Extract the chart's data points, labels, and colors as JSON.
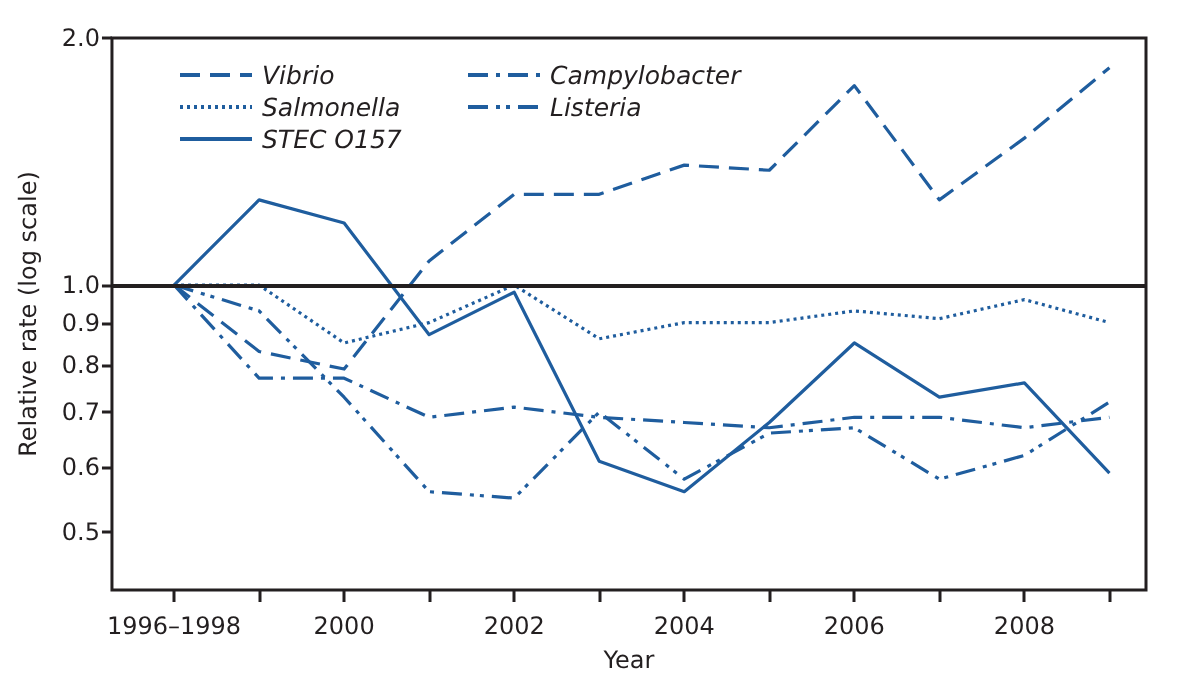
{
  "chart_data": {
    "type": "line",
    "xlabel": "Year",
    "ylabel": "Relative rate (log scale)",
    "categories": [
      "1996–1998",
      null,
      "2000",
      null,
      "2002",
      null,
      "2004",
      null,
      "2006",
      null,
      "2008",
      null
    ],
    "series": [
      {
        "name": "Vibrio",
        "color": "#1f5d9e",
        "line_style": "dashed",
        "values": [
          1.0,
          0.83,
          0.79,
          1.07,
          1.29,
          1.29,
          1.4,
          1.38,
          1.75,
          1.27,
          1.51,
          1.84
        ]
      },
      {
        "name": "Salmonella",
        "color": "#1f5d9e",
        "line_style": "dotted",
        "values": [
          1.0,
          1.0,
          0.85,
          0.9,
          1.0,
          0.86,
          0.9,
          0.9,
          0.93,
          0.91,
          0.96,
          0.9
        ]
      },
      {
        "name": "STEC O157",
        "color": "#1f5d9e",
        "line_style": "solid",
        "values": [
          1.0,
          1.27,
          1.19,
          0.87,
          0.98,
          0.61,
          0.56,
          0.68,
          0.85,
          0.73,
          0.76,
          0.59
        ]
      },
      {
        "name": "Campylobacter",
        "color": "#1f5d9e",
        "line_style": "dashdot",
        "values": [
          1.0,
          0.77,
          0.77,
          0.69,
          0.71,
          0.69,
          0.68,
          0.67,
          0.69,
          0.69,
          0.67,
          0.69
        ]
      },
      {
        "name": "Listeria",
        "color": "#1f5d9e",
        "line_style": "dashdotdot",
        "values": [
          1.0,
          0.93,
          0.73,
          0.56,
          0.55,
          0.7,
          0.58,
          0.66,
          0.67,
          0.58,
          0.62,
          0.72
        ]
      }
    ],
    "ylim": [
      0.425,
      2.0
    ],
    "yticks": [
      0.5,
      0.6,
      0.7,
      0.8,
      0.9,
      {
        "value": 1,
        "label": "1.0"
      },
      {
        "value": 2,
        "label": "2.0"
      }
    ],
    "log": "y",
    "grid": false,
    "legend": "top left",
    "marker": "none",
    "ref_lines": [
      {
        "axis": "y",
        "value": 1,
        "color": "#231f20",
        "line_style": "solid"
      }
    ]
  }
}
